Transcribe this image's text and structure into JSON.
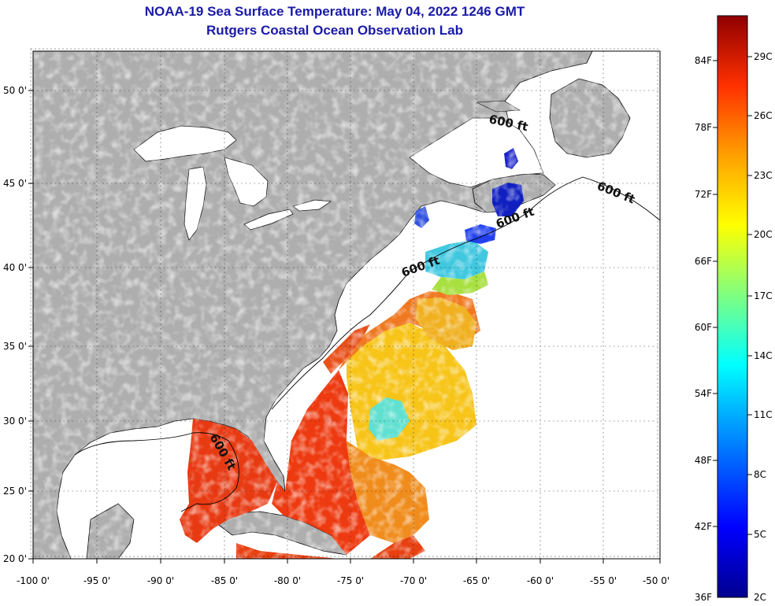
{
  "title": {
    "line1": "NOAA-19 Sea Surface Temperature:  May 04, 2022 1246 GMT",
    "line2": "Rutgers Coastal Ocean Observation Lab"
  },
  "map": {
    "lon_labels": [
      "-100 0'",
      "-95 0'",
      "-90 0'",
      "-85 0'",
      "-80 0'",
      "-75 0'",
      "-70 0'",
      "-65 0'",
      "-60 0'",
      "-55 0'",
      "-50 0'"
    ],
    "lat_labels": [
      "50 0'",
      "45 0'",
      "40 0'",
      "35 0'",
      "30 0'",
      "25 0'",
      "20 0'"
    ],
    "isobath_labels": [
      "600 ft",
      "600 ft",
      "600 ft",
      "600 ft",
      "600 ft"
    ],
    "colors": {
      "land": "#aeaeae",
      "ocean": "#ffffff",
      "title": "#1a1aa8"
    }
  },
  "colorbar": {
    "fahrenheit_labels": [
      "84F",
      "78F",
      "72F",
      "66F",
      "60F",
      "54F",
      "48F",
      "42F",
      "36F"
    ],
    "celsius_labels": [
      "29C",
      "26C",
      "23C",
      "20C",
      "17C",
      "14C",
      "11C",
      "8C",
      "5C",
      "2C"
    ]
  }
}
